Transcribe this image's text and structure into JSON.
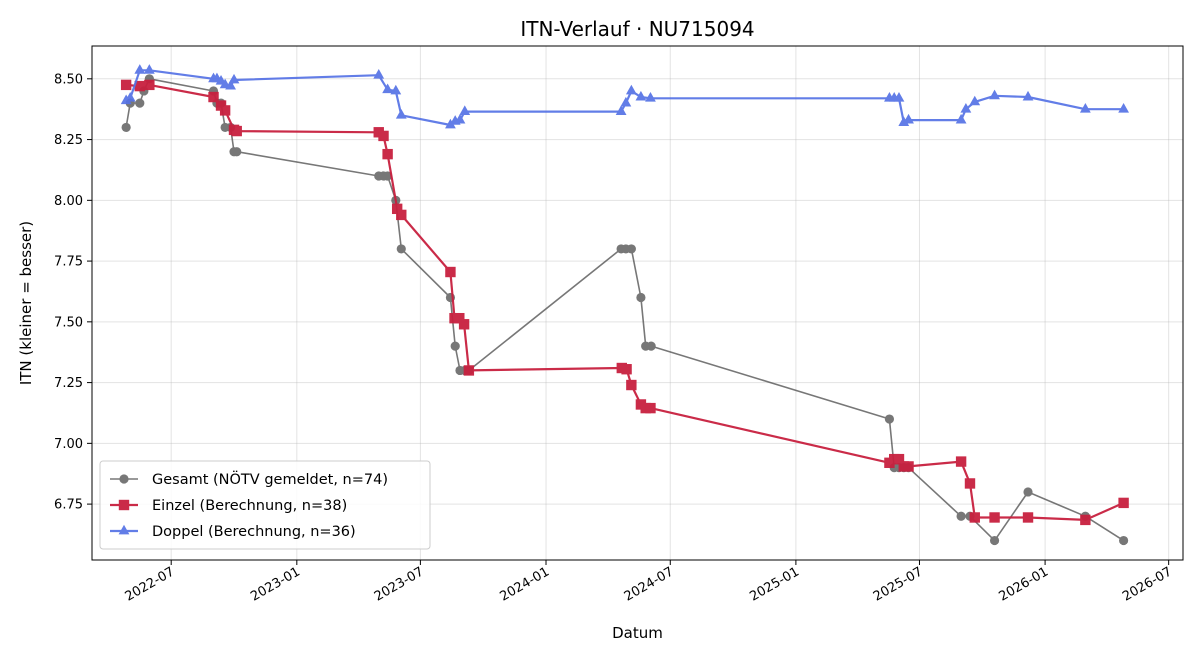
{
  "chart_data": {
    "type": "line",
    "title": "ITN-Verlauf · NU715094",
    "xlabel": "Datum",
    "ylabel": "ITN  (kleiner = besser)",
    "xlim": [
      "2022-03-07",
      "2026-07-22"
    ],
    "ylim": [
      6.52,
      8.635
    ],
    "x_ticks": [
      "2022-07-01",
      "2023-01-01",
      "2023-07-01",
      "2024-01-01",
      "2024-07-01",
      "2025-01-01",
      "2025-07-01",
      "2026-01-01",
      "2026-07-01"
    ],
    "x_tick_labels": [
      "2022-07",
      "2023-01",
      "2023-07",
      "2024-01",
      "2024-07",
      "2025-01",
      "2025-07",
      "2026-01",
      "2026-07"
    ],
    "y_ticks": [
      6.75,
      7.0,
      7.25,
      7.5,
      7.75,
      8.0,
      8.25,
      8.5
    ],
    "y_tick_labels": [
      "6.75",
      "7.00",
      "7.25",
      "7.50",
      "7.75",
      "8.00",
      "8.25",
      "8.50"
    ],
    "grid": true,
    "legend_position": "lower-left",
    "series": [
      {
        "name": "Gesamt (NÖTV gemeldet, n=74)",
        "color": "#444444",
        "marker": "circle",
        "x": [
          "2022-04-26",
          "2022-05-02",
          "2022-05-16",
          "2022-05-22",
          "2022-05-30",
          "2022-09-01",
          "2022-09-06",
          "2022-09-12",
          "2022-09-18",
          "2022-09-26",
          "2022-10-01",
          "2022-10-05",
          "2023-05-01",
          "2023-05-08",
          "2023-05-14",
          "2023-05-26",
          "2023-06-03",
          "2023-08-14",
          "2023-08-21",
          "2023-08-28",
          "2023-09-04",
          "2023-09-10",
          "2024-04-20",
          "2024-04-27",
          "2024-05-05",
          "2024-05-19",
          "2024-05-26",
          "2024-06-03",
          "2025-05-18",
          "2025-05-25",
          "2025-06-01",
          "2025-06-08",
          "2025-06-15",
          "2025-08-31",
          "2025-09-13",
          "2025-10-19",
          "2025-12-07",
          "2026-03-01",
          "2026-04-26"
        ],
        "y": [
          8.3,
          8.4,
          8.4,
          8.45,
          8.5,
          8.45,
          8.4,
          8.4,
          8.3,
          8.3,
          8.2,
          8.2,
          8.1,
          8.1,
          8.1,
          8.0,
          7.8,
          7.6,
          7.4,
          7.3,
          7.3,
          7.3,
          7.8,
          7.8,
          7.8,
          7.6,
          7.4,
          7.4,
          7.1,
          6.9,
          6.9,
          6.9,
          6.9,
          6.7,
          6.7,
          6.6,
          6.8,
          6.7,
          6.6
        ]
      },
      {
        "name": "Einzel (Berechnung, n=38)",
        "color": "#c8203f",
        "marker": "square",
        "x": [
          "2022-04-26",
          "2022-05-16",
          "2022-05-30",
          "2022-09-01",
          "2022-09-12",
          "2022-09-18",
          "2022-10-01",
          "2022-10-05",
          "2023-05-01",
          "2023-05-08",
          "2023-05-14",
          "2023-05-28",
          "2023-06-03",
          "2023-08-14",
          "2023-08-20",
          "2023-08-27",
          "2023-09-03",
          "2023-09-10",
          "2024-04-21",
          "2024-04-28",
          "2024-05-05",
          "2024-05-19",
          "2024-05-26",
          "2024-06-02",
          "2025-05-18",
          "2025-05-25",
          "2025-06-01",
          "2025-06-08",
          "2025-06-15",
          "2025-08-31",
          "2025-09-13",
          "2025-09-20",
          "2025-10-19",
          "2025-12-07",
          "2026-03-01",
          "2026-04-26"
        ],
        "y": [
          8.475,
          8.47,
          8.475,
          8.425,
          8.39,
          8.37,
          8.29,
          8.285,
          8.28,
          8.265,
          8.19,
          7.965,
          7.94,
          7.705,
          7.515,
          7.515,
          7.49,
          7.3,
          7.31,
          7.305,
          7.24,
          7.16,
          7.145,
          7.145,
          6.92,
          6.935,
          6.935,
          6.905,
          6.905,
          6.925,
          6.835,
          6.695,
          6.695,
          6.695,
          6.685,
          6.755
        ]
      },
      {
        "name": "Doppel (Berechnung, n=36)",
        "color": "#5572e6",
        "marker": "triangle",
        "x": [
          "2022-04-26",
          "2022-05-02",
          "2022-05-16",
          "2022-05-30",
          "2022-09-01",
          "2022-09-06",
          "2022-09-12",
          "2022-09-18",
          "2022-09-26",
          "2022-10-01",
          "2023-05-01",
          "2023-05-14",
          "2023-05-26",
          "2023-06-03",
          "2023-08-14",
          "2023-08-21",
          "2023-08-28",
          "2023-09-04",
          "2024-04-20",
          "2024-04-27",
          "2024-05-05",
          "2024-05-19",
          "2024-06-02",
          "2025-05-18",
          "2025-05-25",
          "2025-06-01",
          "2025-06-08",
          "2025-06-15",
          "2025-08-31",
          "2025-09-07",
          "2025-09-20",
          "2025-10-19",
          "2025-12-07",
          "2026-03-01",
          "2026-04-26"
        ],
        "y": [
          8.41,
          8.42,
          8.535,
          8.535,
          8.5,
          8.5,
          8.49,
          8.475,
          8.47,
          8.495,
          8.515,
          8.455,
          8.45,
          8.35,
          8.31,
          8.325,
          8.33,
          8.365,
          8.365,
          8.4,
          8.45,
          8.425,
          8.42,
          8.42,
          8.42,
          8.42,
          8.32,
          8.33,
          8.33,
          8.375,
          8.405,
          8.43,
          8.425,
          8.375,
          8.375
        ]
      }
    ]
  }
}
